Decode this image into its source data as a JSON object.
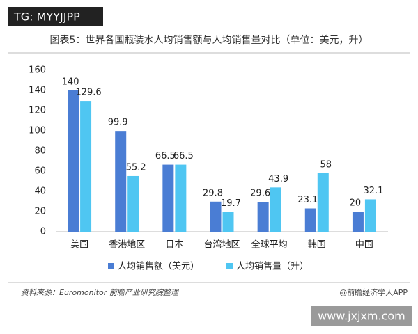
{
  "chart_data": {
    "type": "bar",
    "title": "图表5：世界各国瓶装水人均销售额与人均销售量对比（单位：美元，升）",
    "categories": [
      "美国",
      "香港地区",
      "日本",
      "台湾地区",
      "全球平均",
      "韩国",
      "中国"
    ],
    "series": [
      {
        "name": "人均销售额（美元）",
        "color": "#4a7dd4",
        "values": [
          140,
          99.9,
          66.5,
          29.8,
          29.6,
          23.1,
          20
        ]
      },
      {
        "name": "人均销售量（升）",
        "color": "#4fc6f2",
        "values": [
          129.6,
          55.2,
          66.5,
          19.7,
          43.9,
          58,
          32.1
        ]
      }
    ],
    "ylim": [
      0,
      160
    ],
    "yticks": [
      0,
      20,
      40,
      60,
      80,
      100,
      120,
      140,
      160
    ],
    "grid": false,
    "legend": "bottom",
    "source": "资料来源：Euromonitor 前瞻产业研究院整理",
    "credit": "@前瞻经济学人APP"
  },
  "overlays": {
    "top_left": "TG: MYYJJPP",
    "bottom_right": "www.jxjxm.com"
  }
}
